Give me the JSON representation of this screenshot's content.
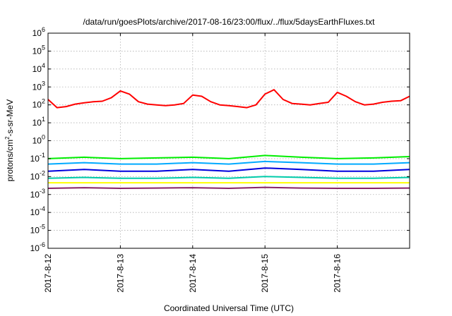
{
  "chart_data": {
    "type": "line",
    "title": "/data/run/goesPlots/archive/2017-08-16/23:00/flux/../flux/5daysEarthFluxes.txt",
    "xlabel": "Coordinated Universal Time (UTC)",
    "ylabel": {
      "base": "protons/cm",
      "sup": "2",
      "rest": "-s-sr-MeV"
    },
    "y_scale": "log",
    "ylim": [
      1e-06,
      1000000.0
    ],
    "y_ticks": [
      {
        "base": "10",
        "exp": "-6",
        "value": 1e-06
      },
      {
        "base": "10",
        "exp": "-5",
        "value": 1e-05
      },
      {
        "base": "10",
        "exp": "-4",
        "value": 0.0001
      },
      {
        "base": "10",
        "exp": "-3",
        "value": 0.001
      },
      {
        "base": "10",
        "exp": "-2",
        "value": 0.01
      },
      {
        "base": "10",
        "exp": "-1",
        "value": 0.1
      },
      {
        "base": "10",
        "exp": "0",
        "value": 1.0
      },
      {
        "base": "10",
        "exp": "1",
        "value": 10.0
      },
      {
        "base": "10",
        "exp": "2",
        "value": 100.0
      },
      {
        "base": "10",
        "exp": "3",
        "value": 1000.0
      },
      {
        "base": "10",
        "exp": "4",
        "value": 10000.0
      },
      {
        "base": "10",
        "exp": "5",
        "value": 100000.0
      },
      {
        "base": "10",
        "exp": "6",
        "value": 1000000.0
      }
    ],
    "xlim": [
      "2017-08-12",
      "2017-08-17"
    ],
    "x_ticks": [
      "2017-8-12",
      "2017-8-13",
      "2017-8-14",
      "2017-8-15",
      "2017-8-16"
    ],
    "grid": true,
    "legend": "none",
    "series": [
      {
        "color": "#ff0000",
        "x": [
          "2017-08-12T00:00",
          "2017-08-12T03:00",
          "2017-08-12T06:00",
          "2017-08-12T09:00",
          "2017-08-12T12:00",
          "2017-08-12T15:00",
          "2017-08-12T18:00",
          "2017-08-12T21:00",
          "2017-08-13T00:00",
          "2017-08-13T03:00",
          "2017-08-13T06:00",
          "2017-08-13T09:00",
          "2017-08-13T12:00",
          "2017-08-13T15:00",
          "2017-08-13T18:00",
          "2017-08-13T21:00",
          "2017-08-14T00:00",
          "2017-08-14T03:00",
          "2017-08-14T06:00",
          "2017-08-14T09:00",
          "2017-08-14T12:00",
          "2017-08-14T15:00",
          "2017-08-14T18:00",
          "2017-08-14T21:00",
          "2017-08-15T00:00",
          "2017-08-15T03:00",
          "2017-08-15T06:00",
          "2017-08-15T09:00",
          "2017-08-15T12:00",
          "2017-08-15T15:00",
          "2017-08-15T18:00",
          "2017-08-15T21:00",
          "2017-08-16T00:00",
          "2017-08-16T03:00",
          "2017-08-16T06:00",
          "2017-08-16T09:00",
          "2017-08-16T12:00",
          "2017-08-16T15:00",
          "2017-08-16T18:00",
          "2017-08-16T21:00",
          "2017-08-17T00:00"
        ],
        "y": [
          200,
          70,
          80,
          110,
          130,
          150,
          160,
          250,
          600,
          400,
          150,
          110,
          100,
          90,
          100,
          120,
          350,
          300,
          150,
          100,
          90,
          80,
          70,
          100,
          400,
          700,
          200,
          120,
          110,
          100,
          120,
          140,
          500,
          300,
          150,
          100,
          110,
          140,
          160,
          170,
          300
        ]
      },
      {
        "color": "#00ee00",
        "x": [
          "2017-08-12T00:00",
          "2017-08-12T12:00",
          "2017-08-13T00:00",
          "2017-08-13T12:00",
          "2017-08-14T00:00",
          "2017-08-14T12:00",
          "2017-08-15T00:00",
          "2017-08-15T12:00",
          "2017-08-16T00:00",
          "2017-08-16T12:00",
          "2017-08-17T00:00"
        ],
        "y": [
          0.1,
          0.12,
          0.1,
          0.11,
          0.12,
          0.1,
          0.15,
          0.12,
          0.1,
          0.11,
          0.13
        ]
      },
      {
        "color": "#00aaff",
        "x": [
          "2017-08-12T00:00",
          "2017-08-12T12:00",
          "2017-08-13T00:00",
          "2017-08-13T12:00",
          "2017-08-14T00:00",
          "2017-08-14T12:00",
          "2017-08-15T00:00",
          "2017-08-15T12:00",
          "2017-08-16T00:00",
          "2017-08-16T12:00",
          "2017-08-17T00:00"
        ],
        "y": [
          0.05,
          0.06,
          0.05,
          0.05,
          0.06,
          0.05,
          0.07,
          0.06,
          0.05,
          0.05,
          0.06
        ]
      },
      {
        "color": "#0000dd",
        "x": [
          "2017-08-12T00:00",
          "2017-08-12T12:00",
          "2017-08-13T00:00",
          "2017-08-13T12:00",
          "2017-08-14T00:00",
          "2017-08-14T12:00",
          "2017-08-15T00:00",
          "2017-08-15T12:00",
          "2017-08-16T00:00",
          "2017-08-16T12:00",
          "2017-08-17T00:00"
        ],
        "y": [
          0.02,
          0.025,
          0.02,
          0.02,
          0.025,
          0.02,
          0.03,
          0.025,
          0.02,
          0.02,
          0.025
        ]
      },
      {
        "color": "#00ccaa",
        "x": [
          "2017-08-12T00:00",
          "2017-08-12T12:00",
          "2017-08-13T00:00",
          "2017-08-13T12:00",
          "2017-08-14T00:00",
          "2017-08-14T12:00",
          "2017-08-15T00:00",
          "2017-08-15T12:00",
          "2017-08-16T00:00",
          "2017-08-16T12:00",
          "2017-08-17T00:00"
        ],
        "y": [
          0.008,
          0.009,
          0.008,
          0.008,
          0.009,
          0.008,
          0.01,
          0.009,
          0.008,
          0.008,
          0.009
        ]
      },
      {
        "color": "#ffff00",
        "x": [
          "2017-08-12T00:00",
          "2017-08-12T12:00",
          "2017-08-13T00:00",
          "2017-08-13T12:00",
          "2017-08-14T00:00",
          "2017-08-14T12:00",
          "2017-08-15T00:00",
          "2017-08-15T12:00",
          "2017-08-16T00:00",
          "2017-08-16T12:00",
          "2017-08-17T00:00"
        ],
        "y": [
          0.0045,
          0.0045,
          0.0045,
          0.0045,
          0.0045,
          0.0045,
          0.0045,
          0.0045,
          0.0045,
          0.0045,
          0.0045
        ]
      },
      {
        "color": "#882266",
        "x": [
          "2017-08-12T00:00",
          "2017-08-12T12:00",
          "2017-08-13T00:00",
          "2017-08-13T12:00",
          "2017-08-14T00:00",
          "2017-08-14T12:00",
          "2017-08-15T00:00",
          "2017-08-15T12:00",
          "2017-08-16T00:00",
          "2017-08-16T12:00",
          "2017-08-17T00:00"
        ],
        "y": [
          0.0022,
          0.0024,
          0.0022,
          0.0023,
          0.0024,
          0.0022,
          0.0025,
          0.0023,
          0.0022,
          0.0022,
          0.0023
        ]
      }
    ]
  }
}
